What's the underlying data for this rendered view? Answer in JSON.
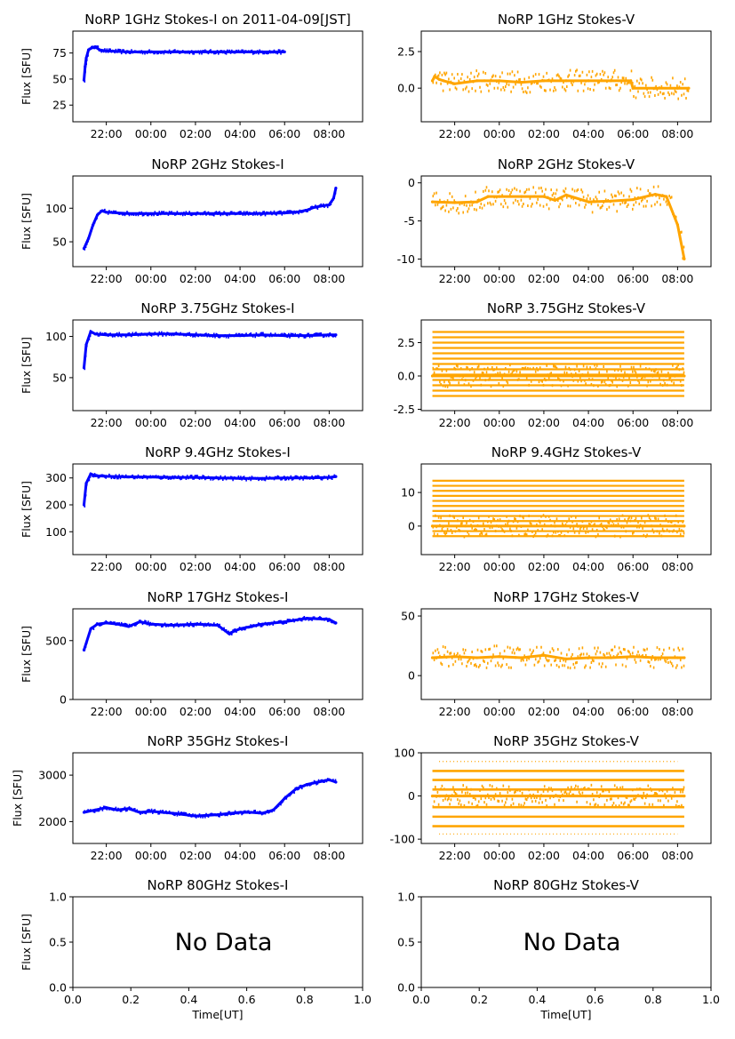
{
  "chart_data": [
    {
      "panel": "1GHz-I",
      "type": "scatter",
      "title": "NoRP 1GHz Stokes-I on 2011-04-09[JST]",
      "ylabel": "Flux [SFU]",
      "xlabel": "",
      "xticks": [
        "22:00",
        "00:00",
        "02:00",
        "04:00",
        "06:00",
        "08:00"
      ],
      "yticks": [
        "25",
        "50",
        "75"
      ],
      "ylim": [
        9,
        96
      ],
      "color": "#0000ff",
      "series": [
        {
          "x": [
            21.0,
            21.05,
            21.1,
            21.2,
            21.35,
            21.5,
            21.7,
            22.0,
            23.0,
            0.0,
            1.0,
            2.0,
            3.0,
            4.0,
            5.0,
            5.5,
            6.0
          ],
          "y": [
            49,
            62,
            70,
            78,
            80,
            81,
            78,
            77,
            76,
            76,
            76,
            76,
            76,
            76,
            76,
            76,
            76
          ]
        }
      ],
      "x_range": [
        "20:30",
        "09:30"
      ]
    },
    {
      "panel": "1GHz-V",
      "type": "scatter",
      "title": "NoRP 1GHz Stokes-V",
      "ylabel": "",
      "xlabel": "",
      "xticks": [
        "22:00",
        "00:00",
        "02:00",
        "04:00",
        "06:00",
        "08:00"
      ],
      "yticks": [
        "0.0",
        "2.5"
      ],
      "ylim": [
        -2.3,
        3.9
      ],
      "color": "#ffa500",
      "series": [
        {
          "x": [
            21.0,
            21.1,
            21.3,
            21.5,
            22.0,
            23.0,
            0.0,
            1.0,
            2.0,
            3.0,
            4.0,
            5.0,
            5.9,
            6.0,
            7.0,
            8.0,
            8.5
          ],
          "y": [
            0.5,
            0.8,
            0.6,
            0.5,
            0.3,
            0.5,
            0.5,
            0.4,
            0.5,
            0.5,
            0.5,
            0.5,
            0.5,
            0.0,
            0.0,
            0.0,
            0.0
          ]
        }
      ],
      "x_range": [
        "20:30",
        "09:30"
      ]
    },
    {
      "panel": "2GHz-I",
      "type": "scatter",
      "title": "NoRP 2GHz Stokes-I",
      "ylabel": "Flux [SFU]",
      "xlabel": "",
      "xticks": [
        "22:00",
        "00:00",
        "02:00",
        "04:00",
        "06:00",
        "08:00"
      ],
      "yticks": [
        "50",
        "100"
      ],
      "ylim": [
        13,
        148
      ],
      "color": "#0000ff",
      "series": [
        {
          "x": [
            21.0,
            21.2,
            21.4,
            21.6,
            21.8,
            22.0,
            23.0,
            0.0,
            1.0,
            2.0,
            3.0,
            4.0,
            5.0,
            6.0,
            6.5,
            7.0,
            7.3,
            7.6,
            8.0,
            8.2,
            8.3
          ],
          "y": [
            40,
            55,
            75,
            90,
            96,
            94,
            92,
            92,
            92,
            92,
            92,
            92,
            92,
            93,
            94,
            97,
            101,
            103,
            105,
            115,
            130
          ]
        }
      ],
      "x_range": [
        "20:30",
        "09:30"
      ]
    },
    {
      "panel": "2GHz-V",
      "type": "scatter",
      "title": "NoRP 2GHz Stokes-V",
      "ylabel": "",
      "xlabel": "",
      "xticks": [
        "22:00",
        "00:00",
        "02:00",
        "04:00",
        "06:00",
        "08:00"
      ],
      "yticks": [
        "-10",
        "-5",
        "0"
      ],
      "ylim": [
        -11.0,
        0.9
      ],
      "color": "#ffa500",
      "series": [
        {
          "x": [
            21.0,
            22.0,
            23.0,
            23.5,
            0.0,
            1.0,
            2.0,
            2.5,
            3.0,
            4.0,
            5.0,
            6.0,
            7.0,
            7.5,
            8.0,
            8.3
          ],
          "y": [
            -2.5,
            -2.6,
            -2.5,
            -1.8,
            -1.8,
            -1.8,
            -1.8,
            -2.3,
            -1.6,
            -2.5,
            -2.4,
            -2.2,
            -1.5,
            -1.8,
            -5.5,
            -10.0
          ]
        }
      ],
      "x_range": [
        "20:30",
        "09:30"
      ]
    },
    {
      "panel": "3.75GHz-I",
      "type": "scatter",
      "title": "NoRP 3.75GHz Stokes-I",
      "ylabel": "Flux [SFU]",
      "xlabel": "",
      "xticks": [
        "22:00",
        "00:00",
        "02:00",
        "04:00",
        "06:00",
        "08:00"
      ],
      "yticks": [
        "50",
        "100"
      ],
      "ylim": [
        10,
        120
      ],
      "color": "#0000ff",
      "series": [
        {
          "x": [
            21.0,
            21.1,
            21.3,
            21.5,
            22.0,
            23.0,
            0.0,
            1.0,
            2.0,
            3.0,
            4.0,
            5.0,
            6.0,
            7.0,
            8.0,
            8.3
          ],
          "y": [
            62,
            90,
            106,
            103,
            102,
            102,
            103,
            103,
            102,
            101,
            101,
            102,
            101,
            101,
            102,
            102
          ]
        }
      ],
      "x_range": [
        "20:30",
        "09:30"
      ]
    },
    {
      "panel": "3.75GHz-V",
      "type": "scatter",
      "title": "NoRP 3.75GHz Stokes-V",
      "ylabel": "",
      "xlabel": "",
      "xticks": [
        "22:00",
        "00:00",
        "02:00",
        "04:00",
        "06:00",
        "08:00"
      ],
      "yticks": [
        "-2.5",
        "0.0",
        "2.5"
      ],
      "ylim": [
        -2.6,
        4.2
      ],
      "color": "#ffa500",
      "series": [
        {
          "x": [
            21.0,
            23.5,
            2.5,
            5.5,
            8.3
          ],
          "y": [
            0.0,
            0.0,
            0.0,
            0.0,
            0.0
          ]
        }
      ],
      "bands": {
        "from": -1.5,
        "to": 3.3,
        "step": 0.4,
        "x_start": 21.0,
        "x_end": 8.3
      },
      "x_range": [
        "20:30",
        "09:30"
      ]
    },
    {
      "panel": "9.4GHz-I",
      "type": "scatter",
      "title": "NoRP 9.4GHz Stokes-I",
      "ylabel": "Flux [SFU]",
      "xlabel": "",
      "xticks": [
        "22:00",
        "00:00",
        "02:00",
        "04:00",
        "06:00",
        "08:00"
      ],
      "yticks": [
        "100",
        "200",
        "300"
      ],
      "ylim": [
        15,
        352
      ],
      "color": "#0000ff",
      "series": [
        {
          "x": [
            21.0,
            21.1,
            21.3,
            21.5,
            22.0,
            23.0,
            0.0,
            1.0,
            2.0,
            3.0,
            4.0,
            5.0,
            6.0,
            7.0,
            8.0,
            8.3
          ],
          "y": [
            200,
            280,
            315,
            308,
            306,
            304,
            303,
            302,
            302,
            300,
            298,
            298,
            300,
            300,
            302,
            305
          ]
        }
      ],
      "x_range": [
        "20:30",
        "09:30"
      ]
    },
    {
      "panel": "9.4GHz-V",
      "type": "scatter",
      "title": "NoRP 9.4GHz Stokes-V",
      "ylabel": "",
      "xlabel": "",
      "xticks": [
        "22:00",
        "00:00",
        "02:00",
        "04:00",
        "06:00",
        "08:00"
      ],
      "yticks": [
        "0",
        "10"
      ],
      "ylim": [
        -8.5,
        18.5
      ],
      "color": "#ffa500",
      "series": [
        {
          "x": [
            21.0,
            23.5,
            2.5,
            5.5,
            8.3
          ],
          "y": [
            0,
            0,
            0,
            0,
            0
          ]
        }
      ],
      "bands": {
        "from": -3.0,
        "to": 13.5,
        "step": 1.5,
        "x_start": 21.0,
        "x_end": 8.3
      },
      "x_range": [
        "20:30",
        "09:30"
      ]
    },
    {
      "panel": "17GHz-I",
      "type": "scatter",
      "title": "NoRP 17GHz Stokes-I",
      "ylabel": "Flux [SFU]",
      "xlabel": "",
      "xticks": [
        "22:00",
        "00:00",
        "02:00",
        "04:00",
        "06:00",
        "08:00"
      ],
      "yticks": [
        "0",
        "500"
      ],
      "ylim": [
        0,
        770
      ],
      "color": "#0000ff",
      "series": [
        {
          "x": [
            21.0,
            21.3,
            21.6,
            22.0,
            22.5,
            23.0,
            23.5,
            0.0,
            1.0,
            2.0,
            3.0,
            3.5,
            4.0,
            5.0,
            6.0,
            7.0,
            8.0,
            8.3
          ],
          "y": [
            420,
            600,
            640,
            650,
            640,
            620,
            660,
            640,
            630,
            640,
            630,
            560,
            600,
            640,
            660,
            690,
            680,
            650
          ]
        }
      ],
      "x_range": [
        "20:30",
        "09:30"
      ]
    },
    {
      "panel": "17GHz-V",
      "type": "scatter",
      "title": "NoRP 17GHz Stokes-V",
      "ylabel": "",
      "xlabel": "",
      "xticks": [
        "22:00",
        "00:00",
        "02:00",
        "04:00",
        "06:00",
        "08:00"
      ],
      "yticks": [
        "0",
        "50"
      ],
      "ylim": [
        -20,
        56
      ],
      "color": "#ffa500",
      "series": [
        {
          "x": [
            21.0,
            22.0,
            23.0,
            0.0,
            1.0,
            2.0,
            3.0,
            4.0,
            5.0,
            6.0,
            7.0,
            8.0,
            8.3
          ],
          "y": [
            15,
            16,
            15,
            16,
            15,
            17,
            14,
            15,
            15,
            16,
            15,
            15,
            15
          ]
        }
      ],
      "x_range": [
        "20:30",
        "09:30"
      ]
    },
    {
      "panel": "35GHz-I",
      "type": "scatter",
      "title": "NoRP 35GHz Stokes-I",
      "ylabel": "Flux [SFU]",
      "xlabel": "",
      "xticks": [
        "22:00",
        "00:00",
        "02:00",
        "04:00",
        "06:00",
        "08:00"
      ],
      "yticks": [
        "2000",
        "3000"
      ],
      "ylim": [
        1530,
        3480
      ],
      "color": "#0000ff",
      "series": [
        {
          "x": [
            21.0,
            21.5,
            22.0,
            22.5,
            23.0,
            23.5,
            0.0,
            1.0,
            2.0,
            3.0,
            4.0,
            4.5,
            5.0,
            5.5,
            6.0,
            6.5,
            7.0,
            7.5,
            8.0,
            8.3
          ],
          "y": [
            2200,
            2250,
            2300,
            2250,
            2280,
            2200,
            2220,
            2180,
            2120,
            2150,
            2200,
            2200,
            2180,
            2250,
            2500,
            2700,
            2800,
            2850,
            2900,
            2850
          ]
        }
      ],
      "x_range": [
        "20:30",
        "09:30"
      ]
    },
    {
      "panel": "35GHz-V",
      "type": "scatter",
      "title": "NoRP 35GHz Stokes-V",
      "ylabel": "",
      "xlabel": "",
      "xticks": [
        "22:00",
        "00:00",
        "02:00",
        "04:00",
        "06:00",
        "08:00"
      ],
      "yticks": [
        "-100",
        "0",
        "100"
      ],
      "ylim": [
        -110,
        100
      ],
      "color": "#ffa500",
      "series": [
        {
          "x": [
            21.0,
            8.3
          ],
          "y": [
            0,
            0
          ]
        }
      ],
      "levels": [
        -70,
        -48,
        -26,
        0,
        15,
        37,
        58
      ],
      "x_range": [
        "20:30",
        "09:30"
      ]
    },
    {
      "panel": "80GHz-I",
      "type": "scatter",
      "title": "NoRP 80GHz Stokes-I",
      "ylabel": "Flux [SFU]",
      "xlabel": "Time[UT]",
      "xticks": [
        "0.0",
        "0.2",
        "0.4",
        "0.6",
        "0.8",
        "1.0"
      ],
      "yticks": [
        "0.0",
        "0.5",
        "1.0"
      ],
      "ylim": [
        0,
        1
      ],
      "xlim": [
        0,
        1
      ],
      "annotation": "No Data"
    },
    {
      "panel": "80GHz-V",
      "type": "scatter",
      "title": "NoRP 80GHz Stokes-V",
      "ylabel": "",
      "xlabel": "Time[UT]",
      "xticks": [
        "0.0",
        "0.2",
        "0.4",
        "0.6",
        "0.8",
        "1.0"
      ],
      "yticks": [
        "0.0",
        "0.5",
        "1.0"
      ],
      "ylim": [
        0,
        1
      ],
      "xlim": [
        0,
        1
      ],
      "annotation": "No Data"
    }
  ]
}
